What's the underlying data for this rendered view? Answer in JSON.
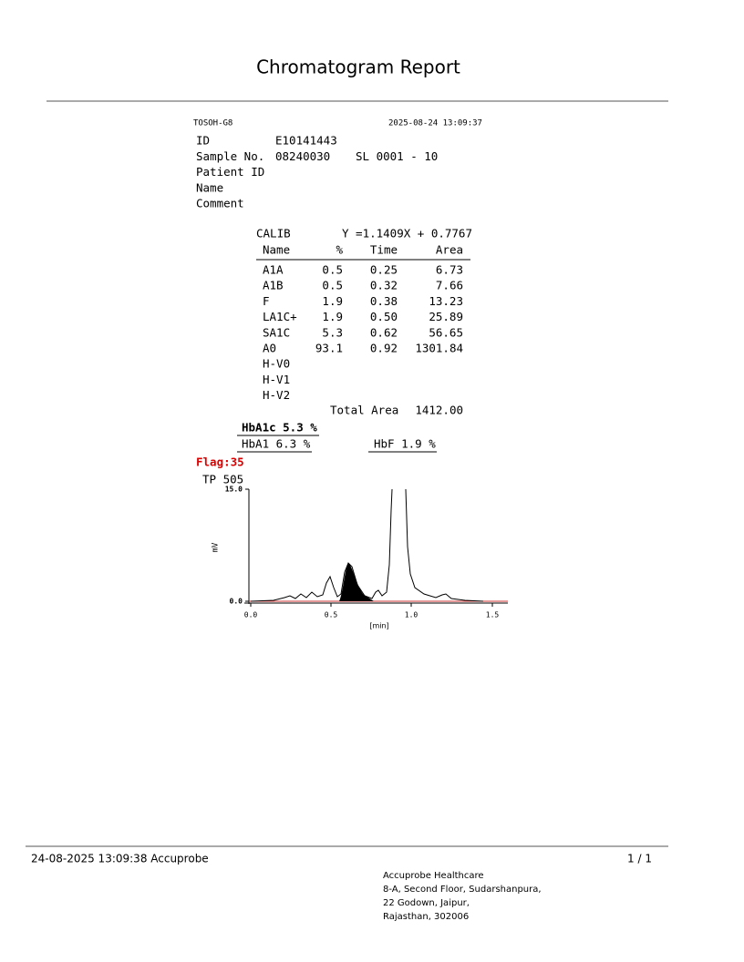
{
  "header": {
    "title": "Chromatogram Report"
  },
  "report": {
    "instrument": "TOSOH-G8",
    "datetime": "2025-08-24 13:09:37",
    "fields": [
      [
        "ID",
        "E10141443"
      ],
      [
        "Sample No.",
        "08240030",
        "SL 0001 - 10"
      ],
      [
        "Patient ID"
      ],
      [
        "Name"
      ],
      [
        "Comment"
      ]
    ],
    "calib_label": "CALIB",
    "calib_equation": "Y =1.1409X + 0.7767",
    "table": {
      "headers": [
        "Name",
        "%",
        "Time",
        "Area"
      ],
      "rows": [
        [
          "A1A",
          "0.5",
          "0.25",
          "6.73"
        ],
        [
          "A1B",
          "0.5",
          "0.32",
          "7.66"
        ],
        [
          "F",
          "1.9",
          "0.38",
          "13.23"
        ],
        [
          "LA1C+",
          "1.9",
          "0.50",
          "25.89"
        ],
        [
          "SA1C",
          "5.3",
          "0.62",
          "56.65"
        ],
        [
          "A0",
          "93.1",
          "0.92",
          "1301.84"
        ],
        [
          "H-V0"
        ],
        [
          "H-V1"
        ],
        [
          "H-V2"
        ]
      ]
    },
    "total_area_label": "Total Area",
    "total_area": "1412.00",
    "hba1c": "HbA1c 5.3 %",
    "hba1": "HbA1 6.3 %",
    "hbf": "HbF 1.9 %",
    "flag": "Flag:35",
    "tp": "TP  505"
  },
  "chromatogram": {
    "y_label": "mV",
    "x_label": "[min]",
    "yticks": [
      "15.0",
      "0.0"
    ],
    "xticks": [
      "0.0",
      "0.5",
      "1.0",
      "1.5"
    ]
  },
  "footer": {
    "printed": "24-08-2025 13:09:38  Accuprobe",
    "page": "1 / 1",
    "address": [
      "Accuprobe Healthcare",
      "8-A, Second Floor, Sudarshanpura,",
      "22 Godown, Jaipur,",
      "Rajasthan, 302006"
    ]
  }
}
